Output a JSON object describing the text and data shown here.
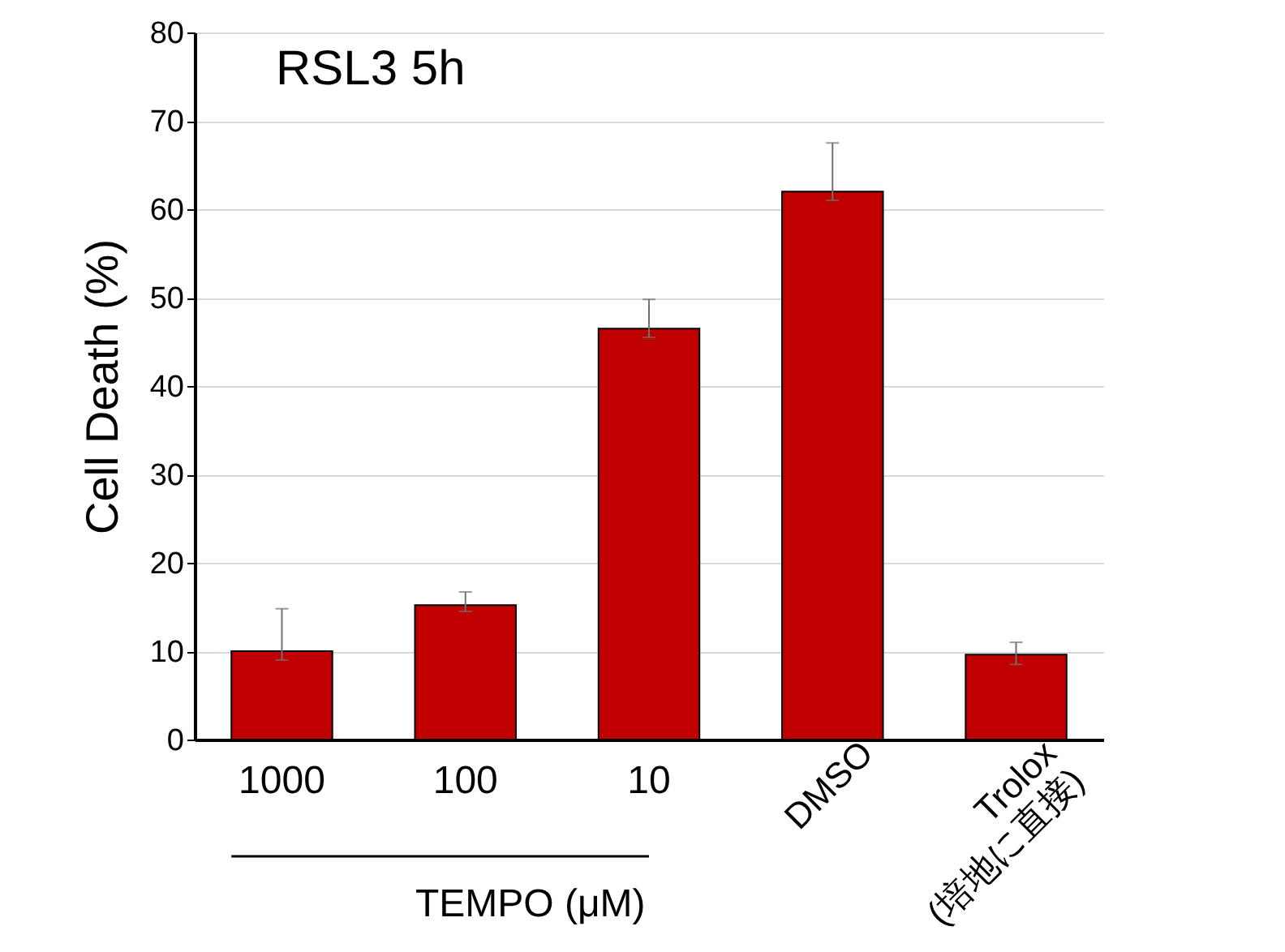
{
  "chart_data": {
    "type": "bar",
    "title": "RSL3  5h",
    "ylabel": "Cell Death  (%)",
    "categories": [
      "1000",
      "100",
      "10",
      "DMSO",
      "Trolox\n(培地に直接)"
    ],
    "values": [
      10,
      15.2,
      46.5,
      62,
      9.6
    ],
    "errors": [
      [
        9,
        14.8
      ],
      [
        14.5,
        16.7
      ],
      [
        45.5,
        49.8
      ],
      [
        61,
        67.5
      ],
      [
        8.5,
        11
      ]
    ],
    "color": "#c00000",
    "ylim": [
      0,
      80
    ],
    "yticks": [
      0,
      10,
      20,
      30,
      40,
      50,
      60,
      70,
      80
    ],
    "grid": "y",
    "annotations": [
      "TEMPO  (μM)"
    ]
  }
}
